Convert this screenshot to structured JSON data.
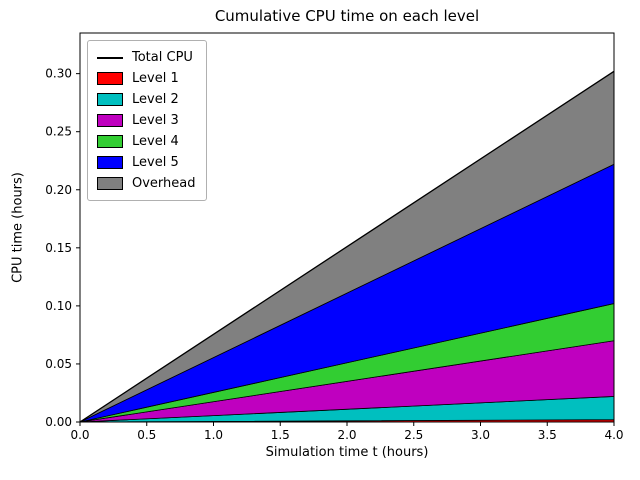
{
  "chart_data": {
    "type": "area",
    "stacked": true,
    "title": "Cumulative CPU time on each level",
    "xlabel": "Simulation time t (hours)",
    "ylabel": "CPU time (hours)",
    "x": [
      0,
      4
    ],
    "xlim": [
      0,
      4
    ],
    "ylim": [
      0,
      0.335
    ],
    "xticks": [
      0.0,
      0.5,
      1.0,
      1.5,
      2.0,
      2.5,
      3.0,
      3.5,
      4.0
    ],
    "xtick_labels": [
      "0.0",
      "0.5",
      "1.0",
      "1.5",
      "2.0",
      "2.5",
      "3.0",
      "3.5",
      "4.0"
    ],
    "yticks": [
      0.0,
      0.05,
      0.1,
      0.15,
      0.2,
      0.25,
      0.3
    ],
    "ytick_labels": [
      "0.00",
      "0.05",
      "0.10",
      "0.15",
      "0.20",
      "0.25",
      "0.30"
    ],
    "grid": false,
    "legend_position": "upper left",
    "series": [
      {
        "name": "Level 1",
        "color": "#ff0000",
        "values": [
          0,
          0.002
        ]
      },
      {
        "name": "Level 2",
        "color": "#00bfbf",
        "values": [
          0,
          0.02
        ]
      },
      {
        "name": "Level 3",
        "color": "#bf00bf",
        "values": [
          0,
          0.048
        ]
      },
      {
        "name": "Level 4",
        "color": "#32cd32",
        "values": [
          0,
          0.032
        ]
      },
      {
        "name": "Level 5",
        "color": "#0000ff",
        "values": [
          0,
          0.12
        ]
      },
      {
        "name": "Overhead",
        "color": "#808080",
        "values": [
          0,
          0.08
        ]
      }
    ],
    "total_line": {
      "name": "Total CPU",
      "color": "#000000",
      "values": [
        0,
        0.302
      ]
    }
  }
}
